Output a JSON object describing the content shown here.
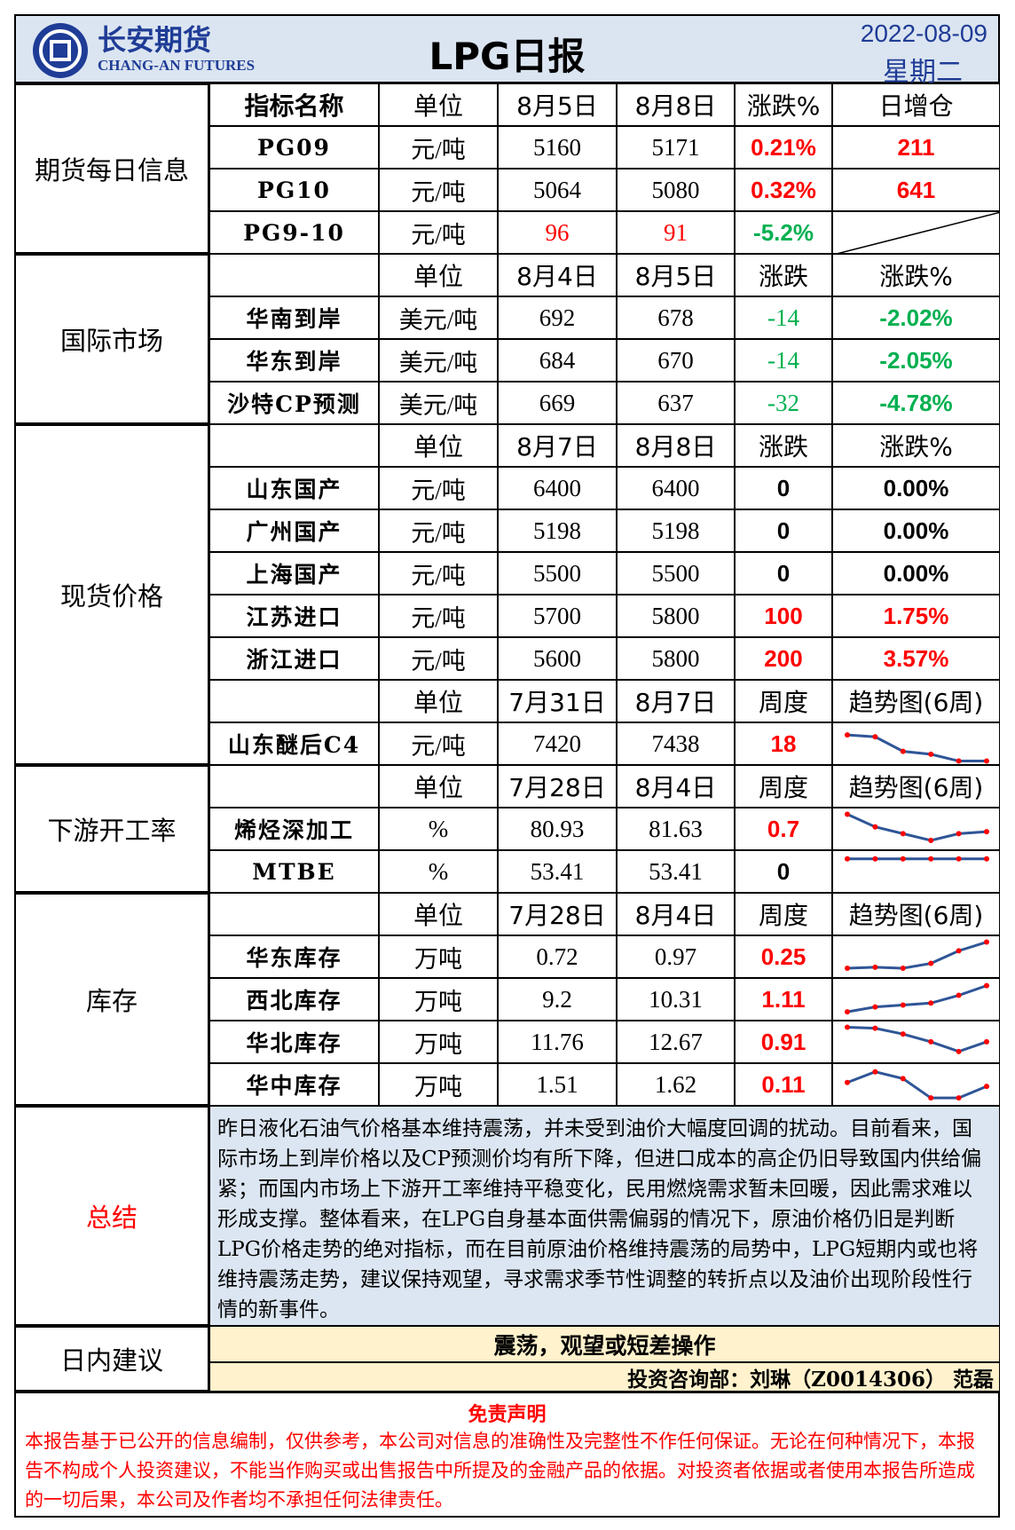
{
  "header": {
    "company": "长安期货",
    "company_en": "CHANG-AN FUTURES",
    "title": "LPG日报",
    "date": "2022-08-09",
    "weekday": "星期二"
  },
  "sections": [
    {
      "label": "期货每日信息",
      "header_rows": [
        0
      ],
      "rows": [
        [
          "指标名称",
          "单位",
          "8月5日",
          "8月8日",
          "涨跌%",
          "日增仓"
        ],
        [
          "PG09",
          "元/吨",
          "5160",
          "5171",
          {
            "text": "0.21%",
            "color": "#ff0000",
            "bold": true
          },
          {
            "text": "211",
            "color": "#ff0000",
            "bold": true
          }
        ],
        [
          "PG10",
          "元/吨",
          "5064",
          "5080",
          {
            "text": "0.32%",
            "color": "#ff0000",
            "bold": true
          },
          {
            "text": "641",
            "color": "#ff0000",
            "bold": true
          }
        ],
        [
          "PG9-10",
          "元/吨",
          {
            "text": "96",
            "color": "#ff0000"
          },
          {
            "text": "91",
            "color": "#ff0000"
          },
          {
            "text": "-5.2%",
            "color": "#00b050",
            "bold": true
          },
          null
        ]
      ]
    },
    {
      "label": "国际市场",
      "header_rows": [
        0
      ],
      "rows": [
        [
          null,
          "单位",
          "8月4日",
          "8月5日",
          "涨跌",
          "涨跌%"
        ],
        [
          "华南到岸",
          "美元/吨",
          "692",
          "678",
          {
            "text": "-14",
            "color": "#00b050"
          },
          {
            "text": "-2.02%",
            "color": "#00b050",
            "bold": true
          }
        ],
        [
          "华东到岸",
          "美元/吨",
          "684",
          "670",
          {
            "text": "-14",
            "color": "#00b050"
          },
          {
            "text": "-2.05%",
            "color": "#00b050",
            "bold": true
          }
        ],
        [
          "沙特CP预测",
          "美元/吨",
          "669",
          "637",
          {
            "text": "-32",
            "color": "#00b050"
          },
          {
            "text": "-4.78%",
            "color": "#00b050",
            "bold": true
          }
        ]
      ]
    },
    {
      "label": "现货价格",
      "header_rows": [
        0,
        6
      ],
      "rows": [
        [
          null,
          "单位",
          "8月7日",
          "8月8日",
          "涨跌",
          "涨跌%"
        ],
        [
          "山东国产",
          "元/吨",
          "6400",
          "6400",
          {
            "text": "0",
            "color": "#000000",
            "bold": true
          },
          {
            "text": "0.00%",
            "color": "#000000",
            "bold": true
          }
        ],
        [
          "广州国产",
          "元/吨",
          "5198",
          "5198",
          {
            "text": "0",
            "color": "#000000",
            "bold": true
          },
          {
            "text": "0.00%",
            "color": "#000000",
            "bold": true
          }
        ],
        [
          "上海国产",
          "元/吨",
          "5500",
          "5500",
          {
            "text": "0",
            "color": "#000000",
            "bold": true
          },
          {
            "text": "0.00%",
            "color": "#000000",
            "bold": true
          }
        ],
        [
          "江苏进口",
          "元/吨",
          "5700",
          "5800",
          {
            "text": "100",
            "color": "#ff0000",
            "bold": true
          },
          {
            "text": "1.75%",
            "color": "#ff0000",
            "bold": true
          }
        ],
        [
          "浙江进口",
          "元/吨",
          "5600",
          "5800",
          {
            "text": "200",
            "color": "#ff0000",
            "bold": true
          },
          {
            "text": "3.57%",
            "color": "#ff0000",
            "bold": true
          }
        ],
        [
          null,
          "单位",
          "7月31日",
          "8月7日",
          "周度",
          "趋势图(6周)"
        ],
        [
          "山东醚后C4",
          "元/吨",
          "7420",
          "7438",
          {
            "text": "18",
            "color": "#ff0000",
            "bold": true
          },
          {
            "trend": [
              32,
              30,
              15,
              12,
              5,
              5
            ]
          }
        ]
      ]
    },
    {
      "label": "下游开工率",
      "header_rows": [
        0
      ],
      "rows": [
        [
          null,
          "单位",
          "7月28日",
          "8月4日",
          "周度",
          "趋势图(6周)"
        ],
        [
          "烯烃深加工",
          "%",
          "80.93",
          "81.63",
          {
            "text": "0.7",
            "color": "#ff0000",
            "bold": true
          },
          {
            "trend": [
              38,
              25,
              18,
              11,
              18,
              20
            ]
          }
        ],
        [
          "MTBE",
          "%",
          "53.41",
          "53.41",
          {
            "text": "0",
            "color": "#000000",
            "bold": true
          },
          {
            "trend": [
              36,
              36,
              36,
              36,
              36,
              36
            ]
          }
        ]
      ]
    },
    {
      "label": "库存",
      "header_rows": [
        0
      ],
      "rows": [
        [
          null,
          "单位",
          "7月28日",
          "8月4日",
          "周度",
          "趋势图(6周)"
        ],
        [
          "华东库存",
          "万吨",
          "0.72",
          "0.97",
          {
            "text": "0.25",
            "color": "#ff0000",
            "bold": true
          },
          {
            "trend": [
              11,
              12,
              11,
              16,
              29,
              38
            ]
          }
        ],
        [
          "西北库存",
          "万吨",
          "9.2",
          "10.31",
          {
            "text": "1.11",
            "color": "#ff0000",
            "bold": true
          },
          {
            "trend": [
              10,
              15,
              17,
              19,
              27,
              37
            ]
          }
        ],
        [
          "华北库存",
          "万吨",
          "11.76",
          "12.67",
          {
            "text": "0.91",
            "color": "#ff0000",
            "bold": true
          },
          {
            "trend": [
              38,
              37,
              31,
              23,
              13,
              23
            ]
          }
        ],
        [
          "华中库存",
          "万吨",
          "1.51",
          "1.62",
          {
            "text": "0.11",
            "color": "#ff0000",
            "bold": true
          },
          {
            "trend": [
              25,
              36,
              29,
              9,
              9,
              21
            ]
          }
        ]
      ]
    }
  ],
  "trend_ylim": [
    0,
    44
  ],
  "trend_line_color": "#2f5597",
  "trend_dot_color": "#ff0000",
  "summary": {
    "label": "总结",
    "text": "昨日液化石油气价格基本维持震荡，并未受到油价大幅度回调的扰动。目前看来，国际市场上到岸价格以及CP预测价均有所下降，但进口成本的高企仍旧导致国内供给偏紧；而国内市场上下游开工率维持平稳变化，民用燃烧需求暂未回暖，因此需求难以形成支撑。整体看来，在LPG自身基本面供需偏弱的情况下，原油价格仍旧是判断LPG价格走势的绝对指标，而在目前原油价格维持震荡的局势中，LPG短期内或也将维持震荡走势，建议保持观望，寻求需求季节性调整的转折点以及油价出现阶段性行情的新事件。"
  },
  "advice": {
    "label": "日内建议",
    "text": "震荡，观望或短差操作",
    "analysts": "投资咨询部：刘琳（Z0014306） 范磊"
  },
  "disclaimer": {
    "title": "免责声明",
    "text": "本报告基于已公开的信息编制，仅供参考，本公司对信息的准确性及完整性不作任何保证。无论在何种情况下，本报告不构成个人投资建议，不能当作购买或出售报告中所提及的金融产品的依据。对投资者依据或者使用本报告所造成的一切后果，本公司及作者均不承担任何法律责任。"
  }
}
